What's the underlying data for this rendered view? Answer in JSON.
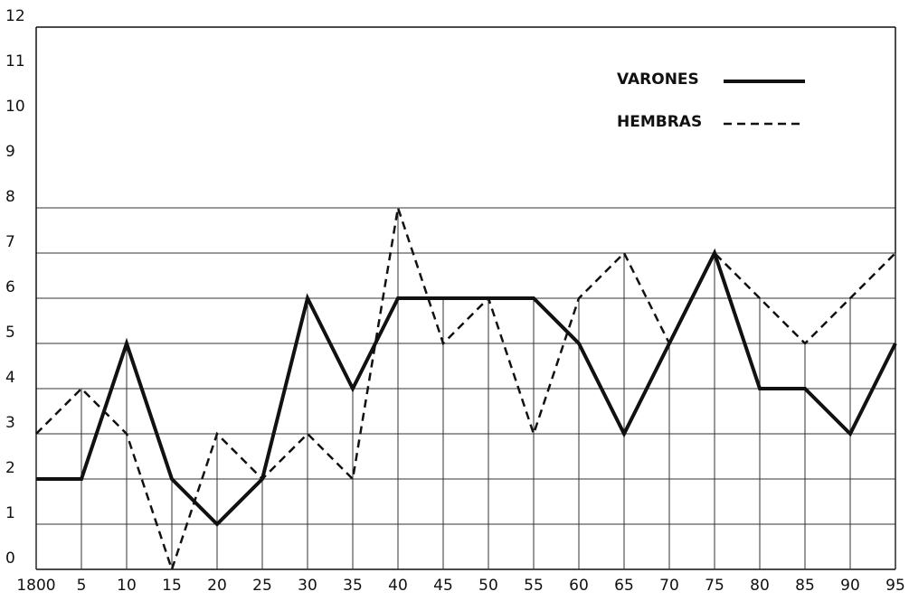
{
  "chart_data": {
    "type": "line",
    "categories": [
      "1800",
      "5",
      "10",
      "15",
      "20",
      "25",
      "30",
      "35",
      "40",
      "45",
      "50",
      "55",
      "60",
      "65",
      "70",
      "75",
      "80",
      "85",
      "90",
      "95"
    ],
    "series": [
      {
        "name": "VARONES",
        "color": "#111111",
        "style": "solid",
        "values": [
          2,
          2,
          5,
          2,
          1,
          2,
          6,
          4,
          6,
          6,
          6,
          6,
          5,
          3,
          5,
          7,
          4,
          4,
          3,
          5
        ]
      },
      {
        "name": "HEMBRAS",
        "color": "#111111",
        "style": "dashed",
        "values": [
          3,
          4,
          3,
          0,
          3,
          2,
          3,
          2,
          8,
          5,
          6,
          3,
          6,
          7,
          5,
          7,
          6,
          5,
          6,
          7
        ]
      }
    ],
    "ylim": [
      0,
      12
    ],
    "yticks": [
      0,
      1,
      2,
      3,
      4,
      5,
      6,
      7,
      8,
      9,
      10,
      11,
      12
    ],
    "grid": true,
    "legend": "upper right"
  }
}
